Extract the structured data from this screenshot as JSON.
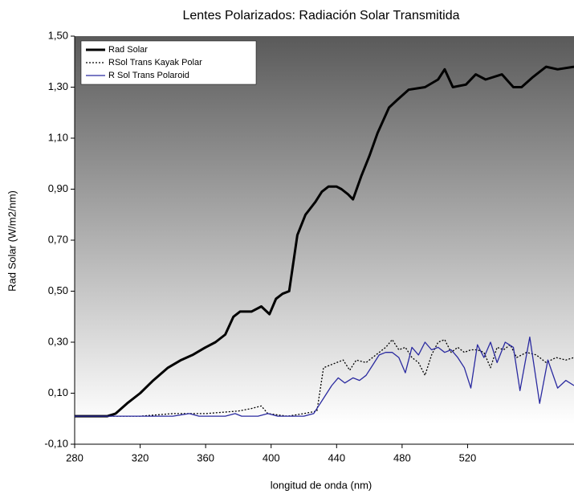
{
  "chart_data": {
    "type": "line",
    "title": "Lentes Polarizados: Radiación Solar Transmitida",
    "xlabel": "longitud de onda (nm)",
    "ylabel": "Rad Solar (W/m2/nm)",
    "xlim": [
      280,
      585
    ],
    "ylim": [
      -0.1,
      1.5
    ],
    "xticks": [
      280,
      320,
      360,
      400,
      440,
      480,
      520
    ],
    "yticks": [
      {
        "value": -0.1,
        "label": "-0,10"
      },
      {
        "value": 0.1,
        "label": "0,10"
      },
      {
        "value": 0.3,
        "label": "0,30"
      },
      {
        "value": 0.5,
        "label": "0,50"
      },
      {
        "value": 0.7,
        "label": "0,70"
      },
      {
        "value": 0.9,
        "label": "0,90"
      },
      {
        "value": 1.1,
        "label": "1,10"
      },
      {
        "value": 1.3,
        "label": "1,30"
      },
      {
        "value": 1.5,
        "label": "1,50"
      }
    ],
    "legend": "upper left",
    "series": [
      {
        "name": "Rad Solar",
        "color": "#000000",
        "style": "solid",
        "width": 3,
        "x": [
          280,
          300,
          305,
          312,
          320,
          328,
          337,
          345,
          352,
          360,
          366,
          372,
          377,
          381,
          388,
          394,
          399,
          403,
          407,
          411,
          416,
          421,
          427,
          431,
          435,
          440,
          443,
          447,
          450,
          455,
          460,
          465,
          472,
          477,
          484,
          494,
          502,
          506,
          511,
          519,
          525,
          531,
          541,
          548,
          553,
          560,
          568,
          575,
          585
        ],
        "values": [
          0.01,
          0.01,
          0.02,
          0.06,
          0.1,
          0.15,
          0.2,
          0.23,
          0.25,
          0.28,
          0.3,
          0.33,
          0.4,
          0.42,
          0.42,
          0.44,
          0.41,
          0.47,
          0.49,
          0.5,
          0.72,
          0.8,
          0.85,
          0.89,
          0.91,
          0.91,
          0.9,
          0.88,
          0.86,
          0.95,
          1.03,
          1.12,
          1.22,
          1.25,
          1.29,
          1.3,
          1.33,
          1.37,
          1.3,
          1.31,
          1.35,
          1.33,
          1.35,
          1.3,
          1.3,
          1.34,
          1.38,
          1.37,
          1.38
        ]
      },
      {
        "name": "RSol Trans Kayak Polar",
        "color": "#000000",
        "style": "dotted",
        "width": 1.3,
        "x": [
          280,
          320,
          340,
          360,
          380,
          388,
          394,
          398,
          410,
          420,
          428,
          432,
          436,
          440,
          444,
          448,
          452,
          458,
          464,
          470,
          474,
          478,
          482,
          486,
          490,
          494,
          498,
          502,
          506,
          510,
          514,
          518,
          522,
          526,
          530,
          534,
          538,
          542,
          546,
          550,
          556,
          562,
          568,
          574,
          580,
          585
        ],
        "values": [
          0.01,
          0.01,
          0.02,
          0.02,
          0.03,
          0.04,
          0.05,
          0.02,
          0.01,
          0.02,
          0.03,
          0.2,
          0.21,
          0.22,
          0.23,
          0.19,
          0.23,
          0.22,
          0.25,
          0.28,
          0.31,
          0.27,
          0.28,
          0.24,
          0.22,
          0.17,
          0.25,
          0.3,
          0.31,
          0.26,
          0.28,
          0.26,
          0.27,
          0.27,
          0.26,
          0.2,
          0.28,
          0.27,
          0.29,
          0.24,
          0.26,
          0.25,
          0.22,
          0.24,
          0.23,
          0.24
        ]
      },
      {
        "name": "R Sol Trans Polaroid",
        "color": "#2a2aa0",
        "style": "solid",
        "width": 1.3,
        "x": [
          280,
          340,
          350,
          356,
          372,
          378,
          382,
          392,
          398,
          404,
          420,
          426,
          432,
          437,
          441,
          445,
          450,
          454,
          458,
          462,
          466,
          470,
          474,
          478,
          482,
          486,
          490,
          494,
          498,
          502,
          506,
          510,
          514,
          518,
          522,
          526,
          530,
          534,
          538,
          543,
          548,
          552,
          558,
          564,
          569,
          575,
          580,
          585
        ],
        "values": [
          0.01,
          0.01,
          0.02,
          0.01,
          0.01,
          0.02,
          0.01,
          0.01,
          0.02,
          0.01,
          0.01,
          0.02,
          0.08,
          0.13,
          0.16,
          0.14,
          0.16,
          0.15,
          0.17,
          0.21,
          0.25,
          0.26,
          0.26,
          0.24,
          0.18,
          0.28,
          0.25,
          0.3,
          0.27,
          0.28,
          0.26,
          0.27,
          0.24,
          0.2,
          0.12,
          0.29,
          0.24,
          0.3,
          0.22,
          0.3,
          0.28,
          0.11,
          0.32,
          0.06,
          0.23,
          0.12,
          0.15,
          0.13
        ]
      }
    ]
  }
}
